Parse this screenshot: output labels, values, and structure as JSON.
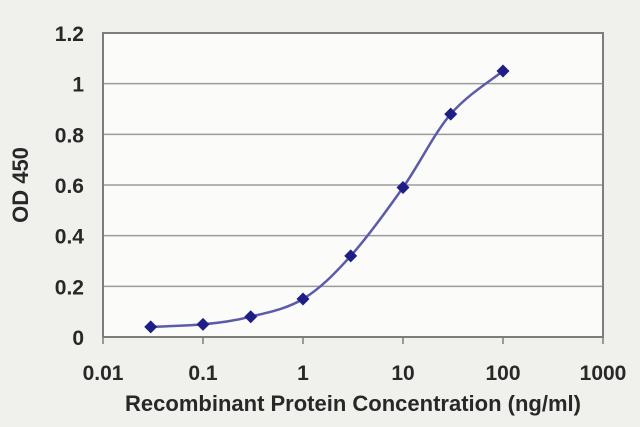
{
  "figure": {
    "background_color": "#f0f0ed",
    "plot_background_color": "#fbfbf9",
    "gridline_color": "#9b9b9b",
    "border_color": "#7d7d7d",
    "text_color": "#282828"
  },
  "chart_data": {
    "type": "line",
    "title": "",
    "xlabel": "Recombinant Protein Concentration (ng/ml)",
    "ylabel": "OD 450",
    "x_scale": "log",
    "y_scale": "linear",
    "xlim": [
      0.01,
      1000
    ],
    "ylim": [
      0,
      1.2
    ],
    "x_ticks": [
      0.01,
      0.1,
      1,
      10,
      100,
      1000
    ],
    "x_tick_labels": [
      "0.01",
      "0.1",
      "1",
      "10",
      "100",
      "1000"
    ],
    "y_ticks": [
      0,
      0.2,
      0.4,
      0.6,
      0.8,
      1,
      1.2
    ],
    "y_tick_labels": [
      "0",
      "0.2",
      "0.4",
      "0.6",
      "0.8",
      "1",
      "1.2"
    ],
    "grid": "horizontal",
    "legend": "none",
    "series": [
      {
        "name": "OD 450",
        "x": [
          0.03,
          0.1,
          0.3,
          1,
          3,
          10,
          30,
          100
        ],
        "y": [
          0.04,
          0.05,
          0.08,
          0.15,
          0.32,
          0.59,
          0.88,
          1.05
        ],
        "line_color": "#5b5baa",
        "marker_color": "#1e1e87",
        "marker": "diamond"
      }
    ]
  }
}
